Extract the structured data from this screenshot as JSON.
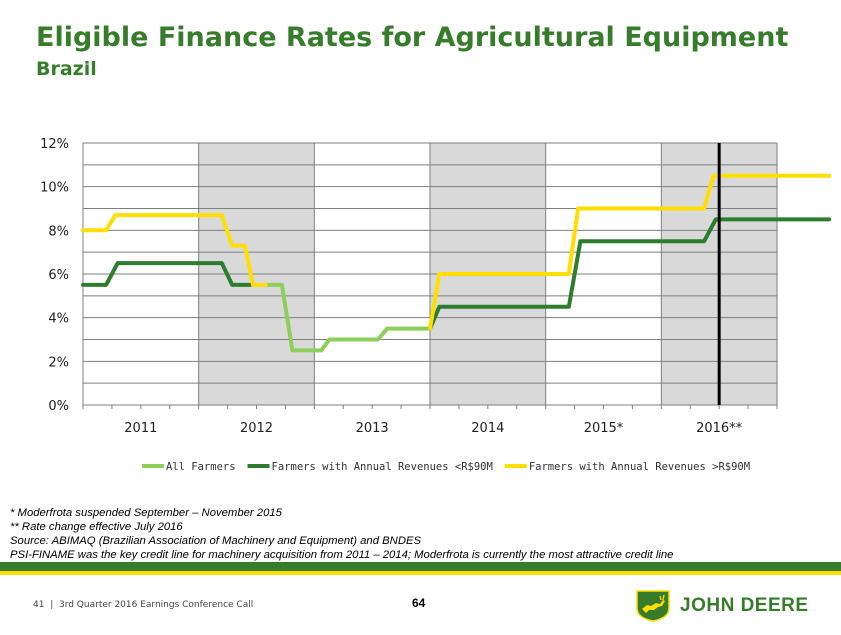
{
  "header": {
    "title": "Eligible Finance Rates for Agricultural Equipment",
    "subtitle": "Brazil"
  },
  "chart_data": {
    "type": "line",
    "ylim": [
      0,
      12
    ],
    "y_ticks": [
      "0%",
      "2%",
      "4%",
      "6%",
      "8%",
      "10%",
      "12%"
    ],
    "categories": [
      "2011",
      "2012",
      "2013",
      "2014",
      "2015*",
      "2016**"
    ],
    "shaded_periods": [
      "2012",
      "2014",
      "2016**"
    ],
    "vertical_marker": {
      "x": 2016.5
    },
    "grid": true,
    "legend_position": "bottom",
    "series": [
      {
        "name": "All Farmers",
        "color": "#8dcf5a",
        "points": [
          [
            2012.58,
            5.5
          ],
          [
            2012.72,
            5.5
          ],
          [
            2012.81,
            2.5
          ],
          [
            2013.06,
            2.5
          ],
          [
            2013.13,
            3.0
          ],
          [
            2013.55,
            3.0
          ],
          [
            2013.63,
            3.5
          ],
          [
            2014.0,
            3.5
          ]
        ]
      },
      {
        "name": "Farmers with Annual Revenues <R$90M",
        "color": "#2e7d2e",
        "points": [
          [
            2011.0,
            5.5
          ],
          [
            2011.2,
            5.5
          ],
          [
            2011.3,
            6.5
          ],
          [
            2012.2,
            6.5
          ],
          [
            2012.29,
            5.5
          ],
          [
            2012.45,
            5.5
          ]
        ]
      },
      {
        "name": "Farmers with Annual Revenues <R$90M",
        "color": "#2e7d2e",
        "points": [
          [
            2014.0,
            3.5
          ],
          [
            2014.08,
            4.5
          ],
          [
            2015.2,
            4.5
          ],
          [
            2015.3,
            7.5
          ],
          [
            2016.37,
            7.5
          ],
          [
            2016.47,
            8.5
          ],
          [
            2017.45,
            8.5
          ]
        ]
      },
      {
        "name": "Farmers with Annual Revenues >R$90M",
        "color": "#ffde00",
        "points": [
          [
            2011.0,
            8.0
          ],
          [
            2011.2,
            8.0
          ],
          [
            2011.28,
            8.7
          ],
          [
            2012.2,
            8.7
          ],
          [
            2012.29,
            7.3
          ],
          [
            2012.4,
            7.3
          ],
          [
            2012.47,
            5.5
          ],
          [
            2012.58,
            5.5
          ]
        ]
      },
      {
        "name": "Farmers with Annual Revenues >R$90M",
        "color": "#ffde00",
        "points": [
          [
            2014.0,
            3.5
          ],
          [
            2014.08,
            6.0
          ],
          [
            2015.2,
            6.0
          ],
          [
            2015.28,
            9.0
          ],
          [
            2016.37,
            9.0
          ],
          [
            2016.45,
            10.5
          ],
          [
            2017.45,
            10.5
          ]
        ]
      }
    ],
    "legend": [
      {
        "label": "All Farmers",
        "color": "#8dcf5a"
      },
      {
        "label": "Farmers with Annual Revenues <R$90M",
        "color": "#2e7d2e"
      },
      {
        "label": "Farmers with Annual Revenues >R$90M",
        "color": "#ffde00"
      }
    ]
  },
  "notes": {
    "line1": "* Moderfrota suspended September – November 2015",
    "line2": "** Rate change effective July 2016",
    "line3": "Source: ABIMAQ (Brazilian Association of Machinery and Equipment) and BNDES",
    "line4": "PSI-FINAME was the key credit line for machinery acquisition from 2011 – 2014; Moderfrota is currently the most attractive credit line"
  },
  "footer": {
    "slide_number": "41",
    "separator": "|",
    "event": "3rd Quarter 2016 Earnings Conference Call",
    "page_number": "64",
    "brand": "JOHN DEERE",
    "green": "#367c2b",
    "yellow": "#ffde00"
  }
}
